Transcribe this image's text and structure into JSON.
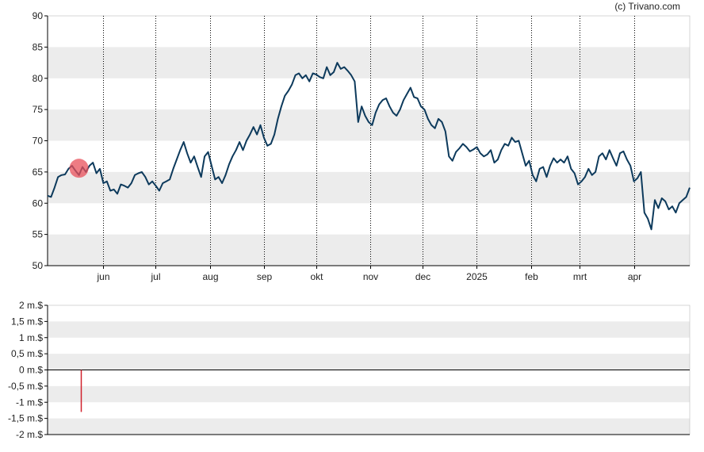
{
  "copyright": "(c) Trivano.com",
  "colors": {
    "line": "#0d3a5c",
    "band": "#ececec",
    "grid": "#000000",
    "marker": "#e8505b",
    "bar": "#d0202c"
  },
  "chart_data": [
    {
      "type": "line",
      "title": "",
      "xlabel": "",
      "ylabel": "",
      "ylim": [
        50,
        90
      ],
      "yticks": [
        "50",
        "55",
        "60",
        "65",
        "70",
        "75",
        "80",
        "85",
        "90"
      ],
      "grid": "alternating horizontal bands, dotted vertical month lines",
      "months": [
        {
          "label": "jun",
          "day": 42
        },
        {
          "label": "jul",
          "day": 72
        },
        {
          "label": "aug",
          "day": 103
        },
        {
          "label": "sep",
          "day": 134
        },
        {
          "label": "okt",
          "day": 164
        },
        {
          "label": "nov",
          "day": 195
        },
        {
          "label": "dec",
          "day": 225
        },
        {
          "label": "2025",
          "day": 256
        },
        {
          "label": "feb",
          "day": 287
        },
        {
          "label": "mrt",
          "day": 315
        },
        {
          "label": "apr",
          "day": 346
        }
      ],
      "x_domain_days": [
        10,
        378
      ],
      "series": [
        {
          "points": [
            [
              10,
              61.2
            ],
            [
              12,
              61.0
            ],
            [
              14,
              62.5
            ],
            [
              16,
              64.2
            ],
            [
              18,
              64.5
            ],
            [
              20,
              64.6
            ],
            [
              22,
              65.5
            ],
            [
              24,
              66.0
            ],
            [
              26,
              65.2
            ],
            [
              28,
              64.5
            ],
            [
              30,
              65.8
            ],
            [
              32,
              65.0
            ],
            [
              34,
              66.0
            ],
            [
              36,
              66.5
            ],
            [
              38,
              64.8
            ],
            [
              40,
              65.5
            ],
            [
              42,
              63.2
            ],
            [
              44,
              63.5
            ],
            [
              46,
              62.0
            ],
            [
              48,
              62.2
            ],
            [
              50,
              61.5
            ],
            [
              52,
              63.0
            ],
            [
              54,
              62.8
            ],
            [
              56,
              62.5
            ],
            [
              58,
              63.2
            ],
            [
              60,
              64.5
            ],
            [
              62,
              64.8
            ],
            [
              64,
              65.0
            ],
            [
              66,
              64.2
            ],
            [
              68,
              63.0
            ],
            [
              70,
              63.5
            ],
            [
              72,
              62.8
            ],
            [
              74,
              62.0
            ],
            [
              76,
              63.2
            ],
            [
              78,
              63.5
            ],
            [
              80,
              63.8
            ],
            [
              82,
              65.5
            ],
            [
              84,
              67.0
            ],
            [
              86,
              68.5
            ],
            [
              88,
              69.8
            ],
            [
              90,
              68.0
            ],
            [
              92,
              66.5
            ],
            [
              94,
              67.5
            ],
            [
              96,
              65.8
            ],
            [
              98,
              64.2
            ],
            [
              100,
              67.5
            ],
            [
              102,
              68.2
            ],
            [
              104,
              66.0
            ],
            [
              106,
              63.8
            ],
            [
              108,
              64.2
            ],
            [
              110,
              63.2
            ],
            [
              112,
              64.5
            ],
            [
              114,
              66.2
            ],
            [
              116,
              67.5
            ],
            [
              118,
              68.5
            ],
            [
              120,
              69.8
            ],
            [
              122,
              68.5
            ],
            [
              124,
              70.0
            ],
            [
              126,
              71.0
            ],
            [
              128,
              72.2
            ],
            [
              130,
              71.0
            ],
            [
              132,
              72.5
            ],
            [
              134,
              70.5
            ],
            [
              136,
              69.2
            ],
            [
              138,
              69.5
            ],
            [
              140,
              71.0
            ],
            [
              142,
              73.5
            ],
            [
              144,
              75.5
            ],
            [
              146,
              77.2
            ],
            [
              148,
              78.0
            ],
            [
              150,
              79.0
            ],
            [
              152,
              80.5
            ],
            [
              154,
              80.8
            ],
            [
              156,
              80.0
            ],
            [
              158,
              80.5
            ],
            [
              160,
              79.5
            ],
            [
              162,
              80.8
            ],
            [
              164,
              80.6
            ],
            [
              166,
              80.2
            ],
            [
              168,
              80.0
            ],
            [
              170,
              81.8
            ],
            [
              172,
              80.5
            ],
            [
              174,
              81.0
            ],
            [
              176,
              82.5
            ],
            [
              178,
              81.5
            ],
            [
              180,
              81.8
            ],
            [
              182,
              81.2
            ],
            [
              184,
              80.5
            ],
            [
              186,
              79.5
            ],
            [
              188,
              73.0
            ],
            [
              190,
              75.5
            ],
            [
              192,
              74.0
            ],
            [
              194,
              73.0
            ],
            [
              196,
              72.5
            ],
            [
              198,
              74.5
            ],
            [
              200,
              75.8
            ],
            [
              202,
              76.5
            ],
            [
              204,
              76.8
            ],
            [
              206,
              75.5
            ],
            [
              208,
              74.5
            ],
            [
              210,
              74.0
            ],
            [
              212,
              75.0
            ],
            [
              214,
              76.5
            ],
            [
              216,
              77.5
            ],
            [
              218,
              78.5
            ],
            [
              220,
              77.0
            ],
            [
              222,
              76.8
            ],
            [
              224,
              75.5
            ],
            [
              226,
              75.0
            ],
            [
              228,
              73.5
            ],
            [
              230,
              72.5
            ],
            [
              232,
              72.0
            ],
            [
              234,
              73.5
            ],
            [
              236,
              73.0
            ],
            [
              238,
              71.5
            ],
            [
              240,
              67.5
            ],
            [
              242,
              66.8
            ],
            [
              244,
              68.2
            ],
            [
              246,
              68.8
            ],
            [
              248,
              69.5
            ],
            [
              250,
              69.0
            ],
            [
              252,
              68.3
            ],
            [
              254,
              68.6
            ],
            [
              256,
              69.0
            ],
            [
              258,
              68.0
            ],
            [
              260,
              67.5
            ],
            [
              262,
              67.8
            ],
            [
              264,
              68.5
            ],
            [
              266,
              66.5
            ],
            [
              268,
              67.0
            ],
            [
              270,
              68.5
            ],
            [
              272,
              69.5
            ],
            [
              274,
              69.2
            ],
            [
              276,
              70.5
            ],
            [
              278,
              69.8
            ],
            [
              280,
              70.0
            ],
            [
              282,
              68.0
            ],
            [
              284,
              66.0
            ],
            [
              286,
              66.8
            ],
            [
              288,
              64.5
            ],
            [
              290,
              63.5
            ],
            [
              292,
              65.5
            ],
            [
              294,
              65.8
            ],
            [
              296,
              64.2
            ],
            [
              298,
              66.0
            ],
            [
              300,
              67.2
            ],
            [
              302,
              66.5
            ],
            [
              304,
              67.0
            ],
            [
              306,
              66.5
            ],
            [
              308,
              67.5
            ],
            [
              310,
              65.5
            ],
            [
              312,
              64.8
            ],
            [
              314,
              63.0
            ],
            [
              316,
              63.5
            ],
            [
              318,
              64.2
            ],
            [
              320,
              65.5
            ],
            [
              322,
              64.5
            ],
            [
              324,
              65.0
            ],
            [
              326,
              67.5
            ],
            [
              328,
              68.0
            ],
            [
              330,
              67.0
            ],
            [
              332,
              68.5
            ],
            [
              334,
              67.2
            ],
            [
              336,
              66.0
            ],
            [
              338,
              68.0
            ],
            [
              340,
              68.3
            ],
            [
              342,
              67.0
            ],
            [
              344,
              66.0
            ],
            [
              346,
              63.5
            ],
            [
              348,
              64.0
            ],
            [
              350,
              65.0
            ],
            [
              352,
              58.5
            ],
            [
              354,
              57.5
            ],
            [
              356,
              55.8
            ],
            [
              358,
              60.5
            ],
            [
              360,
              59.2
            ],
            [
              362,
              60.8
            ],
            [
              364,
              60.3
            ],
            [
              366,
              59.0
            ],
            [
              368,
              59.5
            ],
            [
              370,
              58.5
            ],
            [
              372,
              60.0
            ],
            [
              374,
              60.5
            ],
            [
              376,
              61.0
            ],
            [
              378,
              62.5
            ]
          ]
        }
      ],
      "marker": {
        "day": 28,
        "value": 65.6
      }
    },
    {
      "type": "bar",
      "title": "",
      "xlabel": "",
      "ylabel": "",
      "ylim": [
        -2,
        2
      ],
      "yticks": [
        "-2 m.$",
        "-1,5 m.$",
        "-1 m.$",
        "-0,5 m.$",
        "0 m.$",
        "0,5 m.$",
        "1 m.$",
        "1,5 m.$",
        "2 m.$"
      ],
      "grid": "alternating horizontal bands",
      "series": [
        {
          "points": [
            [
              29,
              -1.3
            ]
          ]
        }
      ]
    }
  ]
}
